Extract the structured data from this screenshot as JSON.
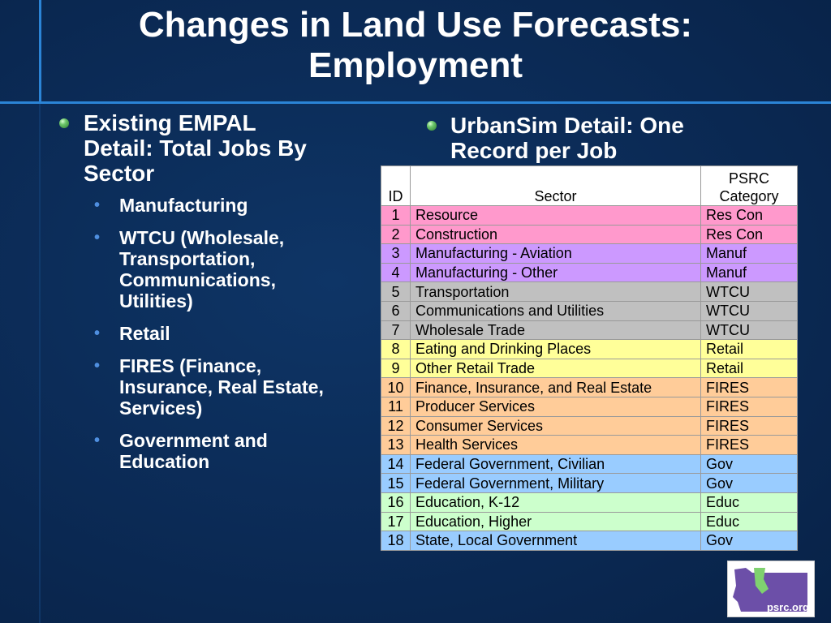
{
  "slide": {
    "title_line1": "Changes in Land Use Forecasts:",
    "title_line2": "Employment"
  },
  "left": {
    "heading_lines": [
      "Existing EMPAL",
      "Detail: Total Jobs By",
      "Sector"
    ],
    "items": [
      {
        "lines": [
          "Manufacturing"
        ]
      },
      {
        "lines": [
          "WTCU (Wholesale,",
          "Transportation,",
          "Communications,",
          "Utilities)"
        ]
      },
      {
        "lines": [
          "Retail"
        ]
      },
      {
        "lines": [
          "FIRES (Finance,",
          "Insurance, Real Estate,",
          "Services)"
        ]
      },
      {
        "lines": [
          "Government and",
          "Education"
        ]
      }
    ]
  },
  "right": {
    "heading_lines": [
      "UrbanSim Detail: One",
      "Record per Job"
    ]
  },
  "table": {
    "headers": {
      "id": "ID",
      "sector": "Sector",
      "category_line1": "PSRC",
      "category_line2": "Category"
    },
    "rows": [
      {
        "id": "1",
        "sector": "Resource",
        "category": "Res Con",
        "color": "#ff99cc"
      },
      {
        "id": "2",
        "sector": "Construction",
        "category": "Res Con",
        "color": "#ff99cc"
      },
      {
        "id": "3",
        "sector": "Manufacturing - Aviation",
        "category": "Manuf",
        "color": "#cc99ff"
      },
      {
        "id": "4",
        "sector": "Manufacturing - Other",
        "category": "Manuf",
        "color": "#cc99ff"
      },
      {
        "id": "5",
        "sector": "Transportation",
        "category": "WTCU",
        "color": "#c0c0c0"
      },
      {
        "id": "6",
        "sector": "Communications and Utilities",
        "category": "WTCU",
        "color": "#c0c0c0"
      },
      {
        "id": "7",
        "sector": "Wholesale Trade",
        "category": "WTCU",
        "color": "#c0c0c0"
      },
      {
        "id": "8",
        "sector": "Eating and Drinking Places",
        "category": "Retail",
        "color": "#ffff99"
      },
      {
        "id": "9",
        "sector": "Other Retail Trade",
        "category": "Retail",
        "color": "#ffff99"
      },
      {
        "id": "10",
        "sector": "Finance, Insurance, and Real Estate",
        "category": "FIRES",
        "color": "#ffcc99"
      },
      {
        "id": "11",
        "sector": "Producer Services",
        "category": "FIRES",
        "color": "#ffcc99"
      },
      {
        "id": "12",
        "sector": "Consumer Services",
        "category": "FIRES",
        "color": "#ffcc99"
      },
      {
        "id": "13",
        "sector": "Health Services",
        "category": "FIRES",
        "color": "#ffcc99"
      },
      {
        "id": "14",
        "sector": "Federal Government, Civilian",
        "category": "Gov",
        "color": "#99ccff"
      },
      {
        "id": "15",
        "sector": "Federal Government, Military",
        "category": "Gov",
        "color": "#99ccff"
      },
      {
        "id": "16",
        "sector": "Education, K-12",
        "category": "Educ",
        "color": "#ccffcc"
      },
      {
        "id": "17",
        "sector": "Education, Higher",
        "category": "Educ",
        "color": "#ccffcc"
      },
      {
        "id": "18",
        "sector": "State, Local Government",
        "category": "Gov",
        "color": "#99ccff"
      }
    ]
  },
  "logo": {
    "text": "psrc.org",
    "icon": "washington-state-map-icon",
    "shape_color": "#6c4fa8",
    "accent_color": "#7fd16f"
  }
}
